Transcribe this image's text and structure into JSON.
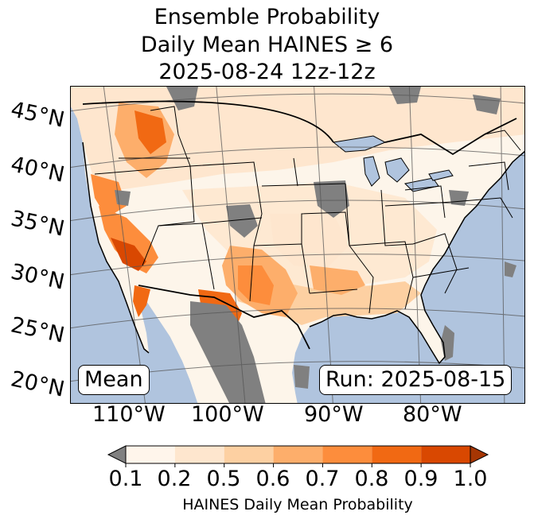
{
  "title": {
    "line1": "Ensemble Probability",
    "line2": "Daily Mean HAINES ≥ 6",
    "line3": "2025-08-24 12z-12z"
  },
  "map": {
    "lat_labels": [
      "45°N",
      "40°N",
      "35°N",
      "30°N",
      "25°N",
      "20°N"
    ],
    "lon_labels": [
      "110°W",
      "100°W",
      "90°W",
      "80°W"
    ],
    "left_box": "Mean",
    "right_box": "Run: 2025-08-15",
    "ocean_color": "#b0c4de",
    "land_color": "#fdf5ea",
    "missing_color": "#808080"
  },
  "colorbar": {
    "ticks": [
      "0.1",
      "0.2",
      "0.5",
      "0.6",
      "0.7",
      "0.8",
      "0.9",
      "1.0"
    ],
    "label": "HAINES Daily Mean Probability",
    "under_color": "#808080",
    "colors": [
      "#fff5eb",
      "#fee6ce",
      "#fdd0a2",
      "#fdae6b",
      "#fd8d3c",
      "#f16913",
      "#d94801",
      "#a63603"
    ]
  }
}
